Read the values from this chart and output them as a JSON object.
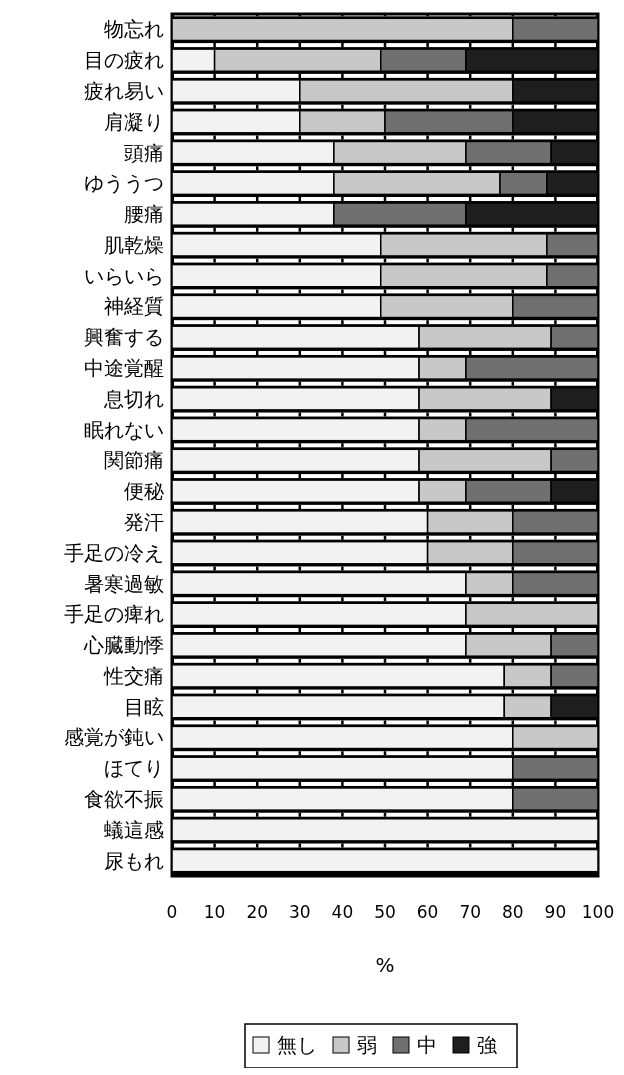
{
  "chart_data": {
    "type": "bar",
    "orientation": "horizontal",
    "stacked": true,
    "xlabel": "%",
    "categories": [
      "物忘れ",
      "目の疲れ",
      "疲れ易い",
      "肩凝り",
      "頭痛",
      "ゆううつ",
      "腰痛",
      "肌乾燥",
      "いらいら",
      "神経質",
      "興奮する",
      "中途覚醒",
      "息切れ",
      "眠れない",
      "関節痛",
      "便秘",
      "発汗",
      "手足の冷え",
      "暑寒過敏",
      "手足の痺れ",
      "心臓動悸",
      "性交痛",
      "目眩",
      "感覚が鈍い",
      "ほてり",
      "食欲不振",
      "蟻這感",
      "尿もれ"
    ],
    "series": [
      {
        "name": "無し",
        "color": "#f2f2f2",
        "values": [
          0,
          10,
          30,
          30,
          38,
          38,
          38,
          49,
          49,
          49,
          58,
          58,
          58,
          58,
          58,
          58,
          60,
          60,
          69,
          69,
          69,
          78,
          78,
          80,
          80,
          80,
          100,
          100
        ]
      },
      {
        "name": "弱",
        "color": "#c8c8c8",
        "values": [
          80,
          39,
          50,
          20,
          31,
          39,
          0,
          39,
          39,
          31,
          31,
          11,
          31,
          11,
          31,
          11,
          20,
          20,
          11,
          31,
          20,
          11,
          11,
          20,
          0,
          0,
          0,
          0
        ]
      },
      {
        "name": "中",
        "color": "#707070",
        "values": [
          20,
          20,
          0,
          30,
          20,
          11,
          31,
          12,
          12,
          20,
          11,
          31,
          0,
          31,
          11,
          20,
          20,
          20,
          20,
          0,
          11,
          11,
          0,
          0,
          20,
          20,
          0,
          0
        ]
      },
      {
        "name": "強",
        "color": "#1e1e1e",
        "values": [
          0,
          31,
          20,
          20,
          11,
          12,
          31,
          0,
          0,
          0,
          0,
          0,
          11,
          0,
          0,
          11,
          0,
          0,
          0,
          0,
          0,
          0,
          11,
          0,
          0,
          0,
          0,
          0
        ]
      }
    ],
    "xlim": [
      0,
      100
    ],
    "xticks": [
      0,
      10,
      20,
      30,
      40,
      50,
      60,
      70,
      80,
      90,
      100
    ],
    "grid": "x",
    "legend": "bottom"
  }
}
